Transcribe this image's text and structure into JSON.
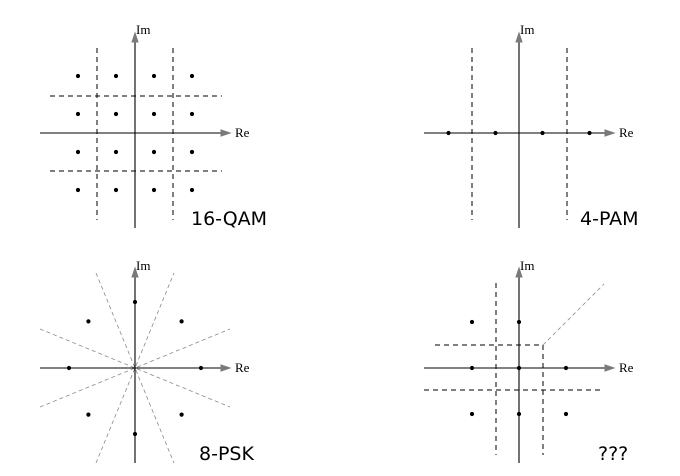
{
  "panels": [
    {
      "id": "qam16",
      "title": "16-QAM",
      "re_label": "Re",
      "im_label": "Im",
      "points": [
        [
          -3,
          3
        ],
        [
          -1,
          3
        ],
        [
          1,
          3
        ],
        [
          3,
          3
        ],
        [
          -3,
          1
        ],
        [
          -1,
          1
        ],
        [
          1,
          1
        ],
        [
          3,
          1
        ],
        [
          -3,
          -1
        ],
        [
          -1,
          -1
        ],
        [
          1,
          -1
        ],
        [
          3,
          -1
        ],
        [
          -3,
          -3
        ],
        [
          -1,
          -3
        ],
        [
          1,
          -3
        ],
        [
          3,
          -3
        ]
      ]
    },
    {
      "id": "pam4",
      "title": "4-PAM",
      "re_label": "Re",
      "im_label": "Im",
      "points": [
        [
          -3,
          0
        ],
        [
          -1,
          0
        ],
        [
          1,
          0
        ],
        [
          3,
          0
        ]
      ]
    },
    {
      "id": "psk8",
      "title": "8-PSK",
      "re_label": "Re",
      "im_label": "Im",
      "points": [
        [
          3,
          0
        ],
        [
          2.12,
          2.12
        ],
        [
          0,
          3
        ],
        [
          -2.12,
          2.12
        ],
        [
          -3,
          0
        ],
        [
          -2.12,
          -2.12
        ],
        [
          0,
          -3
        ],
        [
          2.12,
          -2.12
        ]
      ]
    },
    {
      "id": "unknown",
      "title": "???",
      "re_label": "Re",
      "im_label": "Im",
      "points": [
        [
          -2,
          2
        ],
        [
          0,
          2
        ],
        [
          -2,
          0
        ],
        [
          0,
          0
        ],
        [
          2,
          0
        ],
        [
          -2,
          -2
        ],
        [
          0,
          -2
        ],
        [
          2,
          -2
        ]
      ]
    }
  ]
}
